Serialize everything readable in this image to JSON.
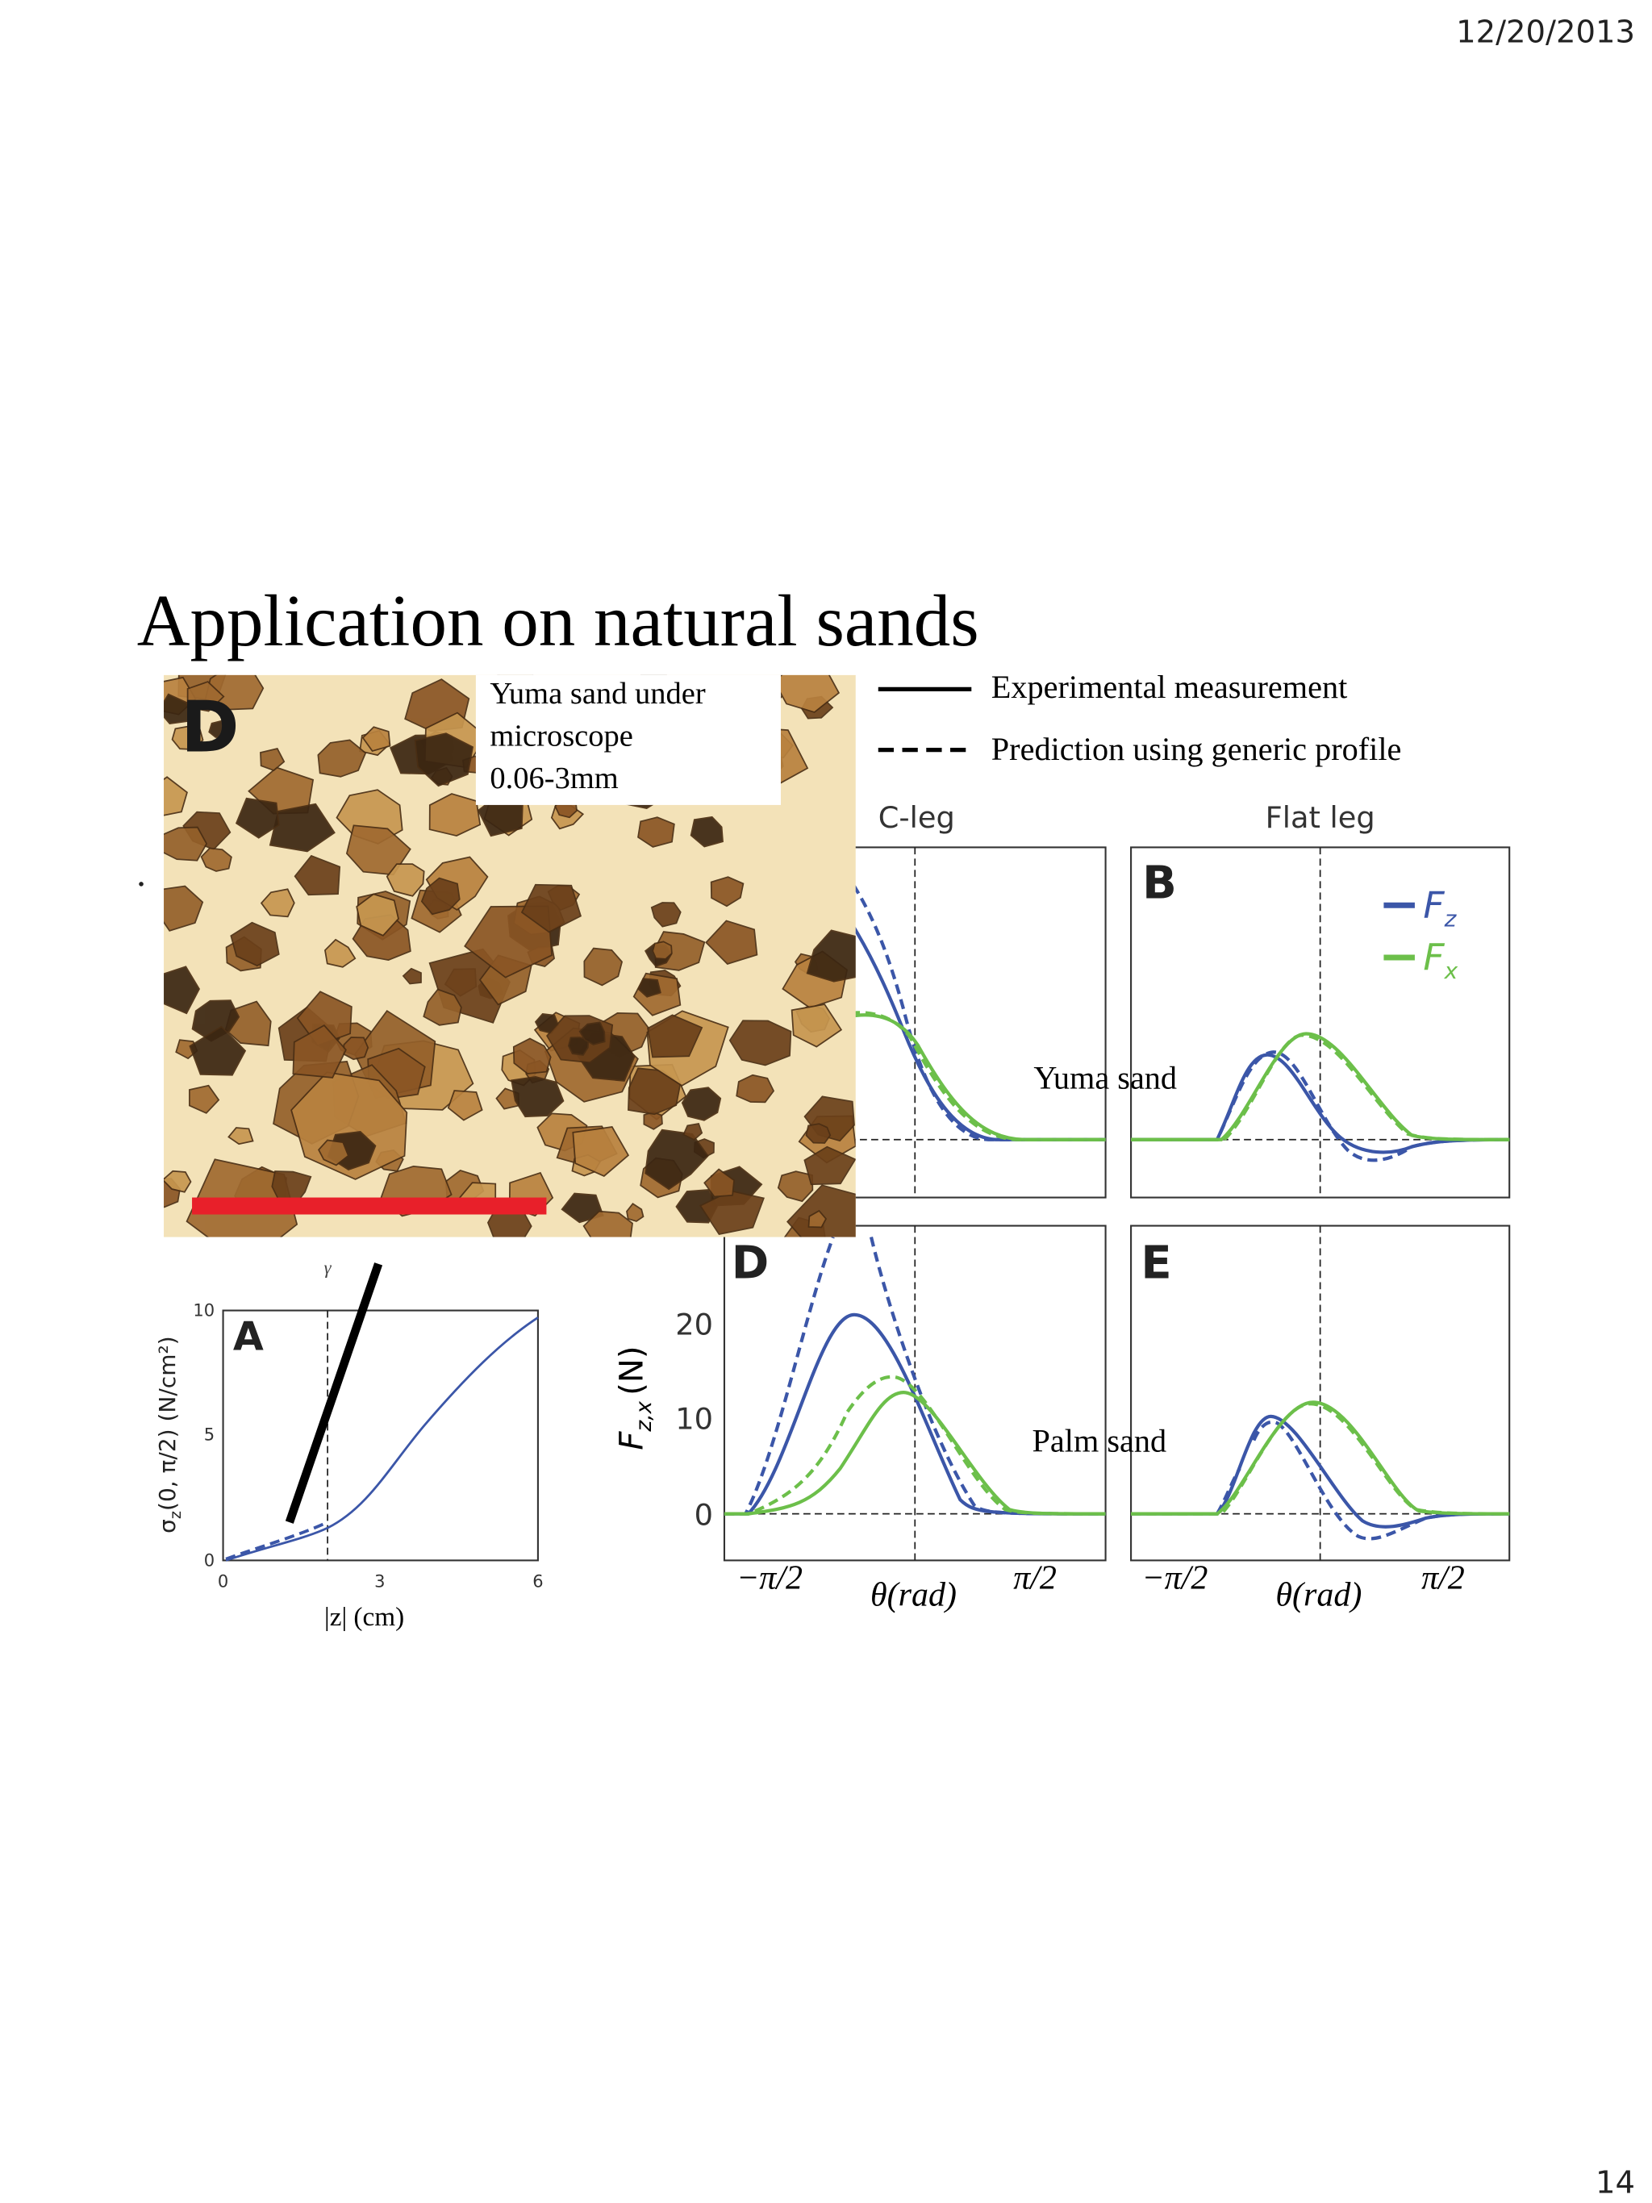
{
  "header": {
    "date": "12/20/2013",
    "page_number": "14"
  },
  "title": "Application on natural sands",
  "photo": {
    "panel": "D",
    "caption": [
      "Yuma sand under",
      "microscope",
      "0.06-3mm"
    ]
  },
  "legend": {
    "solid": "Experimental measurement",
    "dashed": "Prediction using generic profile"
  },
  "figure": {
    "columns": [
      "C-leg",
      "Flat leg"
    ],
    "rows": [
      "Yuma sand",
      "Palm sand"
    ],
    "panels": [
      "B",
      "D",
      "E"
    ],
    "series": [
      {
        "symbol": "F",
        "sub": "z"
      },
      {
        "symbol": "F",
        "sub": "x"
      }
    ],
    "y_label": {
      "symbol": "F",
      "sub": "z,x",
      "unit": "(N)"
    },
    "y_ticks": [
      "20",
      "10",
      "0"
    ],
    "x_ticks": [
      "−π/2",
      "θ(rad)",
      "π/2"
    ]
  },
  "panel_a": {
    "panel": "A",
    "top_label": "γ",
    "y_label": {
      "symbol": "σ",
      "sub": "z",
      "rest": "(0, π/2) (N/cm²)"
    },
    "x_label": "|z| (cm)",
    "y_ticks": [
      "10",
      "5",
      "0"
    ],
    "x_ticks": [
      "0",
      "3",
      "6"
    ]
  }
}
